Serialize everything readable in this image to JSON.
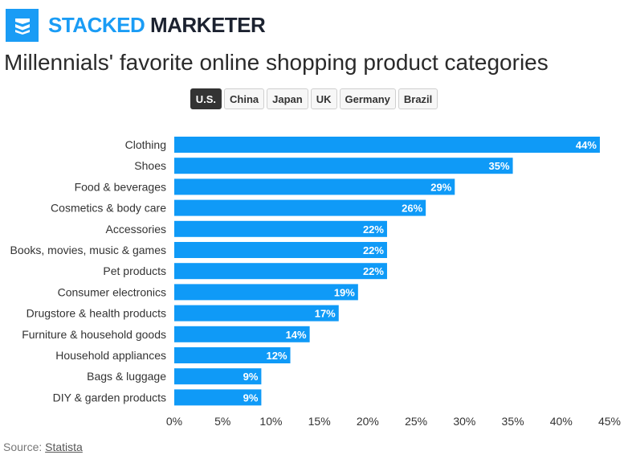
{
  "brand": {
    "name_part1": "STACKED",
    "name_part2": " MARKETER",
    "logo_icon": "stacked-layers-icon",
    "accent_color": "#1a9cf5"
  },
  "tabs": [
    {
      "label": "U.S.",
      "active": true
    },
    {
      "label": "China",
      "active": false
    },
    {
      "label": "Japan",
      "active": false
    },
    {
      "label": "UK",
      "active": false
    },
    {
      "label": "Germany",
      "active": false
    },
    {
      "label": "Brazil",
      "active": false
    }
  ],
  "source": {
    "prefix": "Source: ",
    "link": "Statista"
  },
  "chart_data": {
    "type": "bar",
    "orientation": "horizontal",
    "title": "Millennials' favorite online shopping product categories",
    "categories": [
      "Clothing",
      "Shoes",
      "Food & beverages",
      "Cosmetics & body care",
      "Accessories",
      "Books, movies, music & games",
      "Pet products",
      "Consumer electronics",
      "Drugstore & health products",
      "Furniture & household goods",
      "Household appliances",
      "Bags & luggage",
      "DIY & garden products"
    ],
    "values": [
      44,
      35,
      29,
      26,
      22,
      22,
      22,
      19,
      17,
      14,
      12,
      9,
      9
    ],
    "value_labels": [
      "44%",
      "35%",
      "29%",
      "26%",
      "22%",
      "22%",
      "22%",
      "19%",
      "17%",
      "14%",
      "12%",
      "9%",
      "9%"
    ],
    "xlim": [
      0,
      45
    ],
    "xticks": [
      0,
      5,
      10,
      15,
      20,
      25,
      30,
      35,
      40,
      45
    ],
    "xtick_labels": [
      "0%",
      "5%",
      "10%",
      "15%",
      "20%",
      "25%",
      "30%",
      "35%",
      "40%",
      "45%"
    ],
    "xlabel": "",
    "ylabel": "",
    "grid": false,
    "legend": "none",
    "bar_color": "#0f9af7"
  }
}
